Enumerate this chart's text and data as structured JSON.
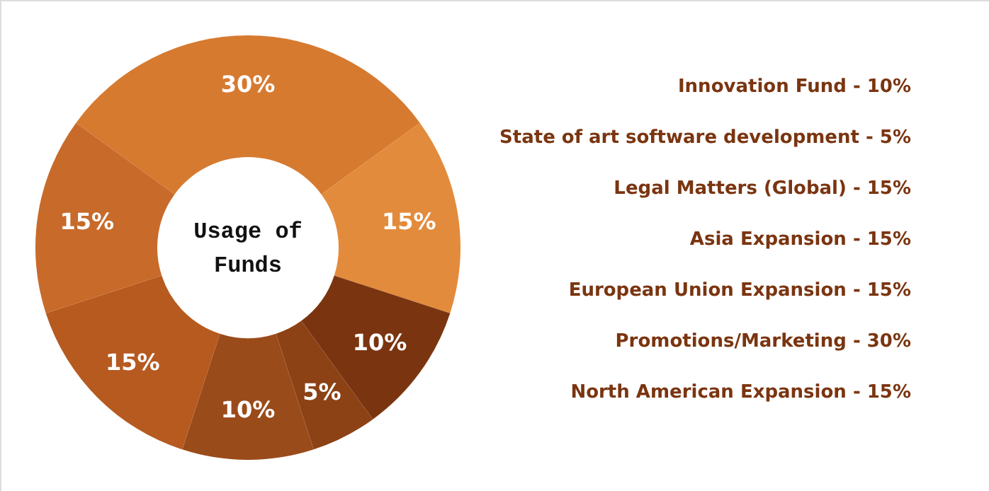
{
  "chart_data": {
    "type": "donut",
    "title": "Usage of Funds",
    "categories": [
      null,
      null,
      null,
      null,
      null,
      null,
      null
    ],
    "values": [
      30,
      15,
      10,
      5,
      10,
      15,
      15
    ],
    "value_labels": [
      "30%",
      "15%",
      "10%",
      "5%",
      "10%",
      "15%",
      "15%"
    ],
    "colors": [
      "#d67a30",
      "#e38b3c",
      "#7a3510",
      "#8c4215",
      "#9a4b1a",
      "#b65a20",
      "#c86a2a"
    ],
    "annotations": [
      "Innovation Fund  - 10%",
      "State of art software development - 5%",
      "Legal Matters (Global) - 15%",
      "Asia Expansion - 15%",
      "European Union Expansion  - 15%",
      "Promotions/Marketing -  30%",
      "North American Expansion - 15%"
    ]
  }
}
